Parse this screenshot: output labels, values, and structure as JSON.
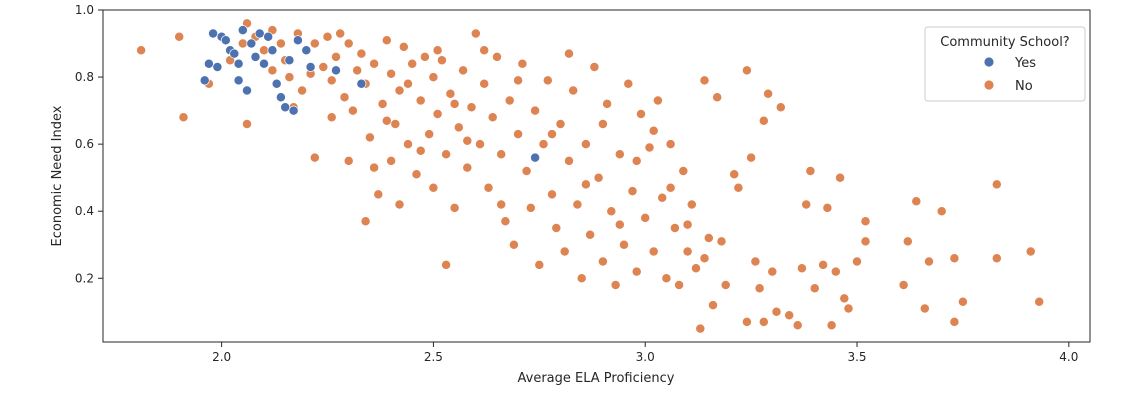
{
  "chart_data": {
    "type": "scatter",
    "xlabel": "Average ELA Proficiency",
    "ylabel": "Economic Need Index",
    "xlim": [
      1.72,
      4.05
    ],
    "ylim": [
      0.01,
      1.0
    ],
    "xticks": [
      "2.0",
      "2.5",
      "3.0",
      "3.5",
      "4.0"
    ],
    "yticks": [
      "0.2",
      "0.4",
      "0.6",
      "0.8",
      "1.0"
    ],
    "grid": false,
    "legend": {
      "title": "Community School?",
      "placement": "top-right",
      "entries": [
        "Yes",
        "No"
      ]
    },
    "colors": {
      "Yes": "#4c72b0",
      "No": "#dd8452"
    },
    "series": [
      {
        "name": "No",
        "points": [
          [
            1.81,
            0.88
          ],
          [
            1.9,
            0.92
          ],
          [
            1.91,
            0.68
          ],
          [
            1.97,
            0.78
          ],
          [
            1.98,
            0.93
          ],
          [
            2.02,
            0.85
          ],
          [
            2.06,
            0.96
          ],
          [
            2.06,
            0.66
          ],
          [
            2.08,
            0.92
          ],
          [
            2.1,
            0.88
          ],
          [
            2.12,
            0.94
          ],
          [
            2.14,
            0.9
          ],
          [
            2.15,
            0.85
          ],
          [
            2.16,
            0.8
          ],
          [
            2.18,
            0.93
          ],
          [
            2.19,
            0.76
          ],
          [
            2.2,
            0.88
          ],
          [
            2.22,
            0.56
          ],
          [
            2.22,
            0.9
          ],
          [
            2.24,
            0.83
          ],
          [
            2.25,
            0.92
          ],
          [
            2.26,
            0.79
          ],
          [
            2.27,
            0.86
          ],
          [
            2.28,
            0.93
          ],
          [
            2.29,
            0.74
          ],
          [
            2.3,
            0.55
          ],
          [
            2.3,
            0.9
          ],
          [
            2.31,
            0.7
          ],
          [
            2.33,
            0.87
          ],
          [
            2.34,
            0.37
          ],
          [
            2.34,
            0.78
          ],
          [
            2.35,
            0.62
          ],
          [
            2.36,
            0.84
          ],
          [
            2.37,
            0.45
          ],
          [
            2.38,
            0.72
          ],
          [
            2.39,
            0.91
          ],
          [
            2.4,
            0.55
          ],
          [
            2.4,
            0.81
          ],
          [
            2.41,
            0.66
          ],
          [
            2.42,
            0.42
          ],
          [
            2.42,
            0.76
          ],
          [
            2.43,
            0.89
          ],
          [
            2.44,
            0.6
          ],
          [
            2.45,
            0.84
          ],
          [
            2.46,
            0.51
          ],
          [
            2.47,
            0.73
          ],
          [
            2.48,
            0.86
          ],
          [
            2.49,
            0.63
          ],
          [
            2.5,
            0.8
          ],
          [
            2.5,
            0.47
          ],
          [
            2.51,
            0.69
          ],
          [
            2.52,
            0.85
          ],
          [
            2.53,
            0.57
          ],
          [
            2.53,
            0.24
          ],
          [
            2.54,
            0.75
          ],
          [
            2.55,
            0.41
          ],
          [
            2.56,
            0.65
          ],
          [
            2.57,
            0.82
          ],
          [
            2.58,
            0.53
          ],
          [
            2.59,
            0.71
          ],
          [
            2.6,
            0.93
          ],
          [
            2.61,
            0.6
          ],
          [
            2.62,
            0.78
          ],
          [
            2.63,
            0.47
          ],
          [
            2.64,
            0.68
          ],
          [
            2.65,
            0.86
          ],
          [
            2.66,
            0.57
          ],
          [
            2.67,
            0.37
          ],
          [
            2.68,
            0.73
          ],
          [
            2.69,
            0.3
          ],
          [
            2.7,
            0.63
          ],
          [
            2.71,
            0.84
          ],
          [
            2.72,
            0.52
          ],
          [
            2.73,
            0.41
          ],
          [
            2.74,
            0.7
          ],
          [
            2.75,
            0.24
          ],
          [
            2.76,
            0.6
          ],
          [
            2.77,
            0.79
          ],
          [
            2.78,
            0.45
          ],
          [
            2.79,
            0.35
          ],
          [
            2.8,
            0.66
          ],
          [
            2.81,
            0.28
          ],
          [
            2.82,
            0.55
          ],
          [
            2.83,
            0.76
          ],
          [
            2.84,
            0.42
          ],
          [
            2.85,
            0.2
          ],
          [
            2.86,
            0.6
          ],
          [
            2.87,
            0.33
          ],
          [
            2.88,
            0.83
          ],
          [
            2.89,
            0.5
          ],
          [
            2.9,
            0.25
          ],
          [
            2.91,
            0.72
          ],
          [
            2.92,
            0.4
          ],
          [
            2.93,
            0.18
          ],
          [
            2.94,
            0.57
          ],
          [
            2.95,
            0.3
          ],
          [
            2.96,
            0.78
          ],
          [
            2.97,
            0.46
          ],
          [
            2.98,
            0.22
          ],
          [
            2.99,
            0.69
          ],
          [
            3.0,
            0.38
          ],
          [
            3.01,
            0.59
          ],
          [
            3.02,
            0.28
          ],
          [
            3.03,
            0.73
          ],
          [
            3.04,
            0.44
          ],
          [
            3.05,
            0.2
          ],
          [
            3.06,
            0.6
          ],
          [
            3.07,
            0.35
          ],
          [
            3.08,
            0.18
          ],
          [
            3.09,
            0.52
          ],
          [
            3.1,
            0.28
          ],
          [
            3.11,
            0.42
          ],
          [
            3.12,
            0.23
          ],
          [
            3.13,
            0.05
          ],
          [
            3.14,
            0.79
          ],
          [
            3.15,
            0.32
          ],
          [
            3.16,
            0.12
          ],
          [
            3.17,
            0.74
          ],
          [
            3.19,
            0.18
          ],
          [
            3.21,
            0.51
          ],
          [
            3.22,
            0.47
          ],
          [
            3.24,
            0.82
          ],
          [
            3.24,
            0.07
          ],
          [
            3.25,
            0.56
          ],
          [
            3.26,
            0.25
          ],
          [
            3.27,
            0.17
          ],
          [
            3.28,
            0.67
          ],
          [
            3.28,
            0.07
          ],
          [
            3.29,
            0.75
          ],
          [
            3.3,
            0.22
          ],
          [
            3.31,
            0.1
          ],
          [
            3.32,
            0.71
          ],
          [
            3.34,
            0.09
          ],
          [
            3.36,
            0.06
          ],
          [
            3.37,
            0.23
          ],
          [
            3.38,
            0.42
          ],
          [
            3.39,
            0.52
          ],
          [
            3.4,
            0.17
          ],
          [
            3.42,
            0.24
          ],
          [
            3.43,
            0.41
          ],
          [
            3.44,
            0.06
          ],
          [
            3.45,
            0.22
          ],
          [
            3.46,
            0.5
          ],
          [
            3.47,
            0.14
          ],
          [
            3.48,
            0.11
          ],
          [
            3.5,
            0.25
          ],
          [
            3.52,
            0.37
          ],
          [
            3.52,
            0.31
          ],
          [
            3.61,
            0.18
          ],
          [
            3.62,
            0.31
          ],
          [
            3.64,
            0.43
          ],
          [
            3.66,
            0.11
          ],
          [
            3.67,
            0.25
          ],
          [
            3.7,
            0.4
          ],
          [
            3.73,
            0.07
          ],
          [
            3.73,
            0.26
          ],
          [
            3.75,
            0.13
          ],
          [
            3.83,
            0.48
          ],
          [
            3.83,
            0.26
          ],
          [
            3.91,
            0.28
          ],
          [
            3.93,
            0.13
          ],
          [
            2.05,
            0.9
          ],
          [
            2.12,
            0.82
          ],
          [
            2.17,
            0.71
          ],
          [
            2.21,
            0.81
          ],
          [
            2.26,
            0.68
          ],
          [
            2.32,
            0.82
          ],
          [
            2.36,
            0.53
          ],
          [
            2.39,
            0.67
          ],
          [
            2.44,
            0.78
          ],
          [
            2.47,
            0.58
          ],
          [
            2.51,
            0.88
          ],
          [
            2.55,
            0.72
          ],
          [
            2.58,
            0.61
          ],
          [
            2.62,
            0.88
          ],
          [
            2.66,
            0.42
          ],
          [
            2.7,
            0.79
          ],
          [
            2.74,
            0.56
          ],
          [
            2.78,
            0.63
          ],
          [
            2.82,
            0.87
          ],
          [
            2.86,
            0.48
          ],
          [
            2.9,
            0.66
          ],
          [
            2.94,
            0.36
          ],
          [
            2.98,
            0.55
          ],
          [
            3.02,
            0.64
          ],
          [
            3.06,
            0.47
          ],
          [
            3.1,
            0.36
          ],
          [
            3.14,
            0.26
          ],
          [
            3.18,
            0.31
          ]
        ]
      },
      {
        "name": "Yes",
        "points": [
          [
            1.96,
            0.79
          ],
          [
            1.97,
            0.84
          ],
          [
            1.98,
            0.93
          ],
          [
            1.99,
            0.83
          ],
          [
            2.0,
            0.92
          ],
          [
            2.01,
            0.91
          ],
          [
            2.02,
            0.88
          ],
          [
            2.03,
            0.87
          ],
          [
            2.04,
            0.84
          ],
          [
            2.04,
            0.79
          ],
          [
            2.05,
            0.94
          ],
          [
            2.06,
            0.76
          ],
          [
            2.07,
            0.9
          ],
          [
            2.08,
            0.86
          ],
          [
            2.09,
            0.93
          ],
          [
            2.1,
            0.84
          ],
          [
            2.11,
            0.92
          ],
          [
            2.12,
            0.88
          ],
          [
            2.13,
            0.78
          ],
          [
            2.14,
            0.74
          ],
          [
            2.15,
            0.71
          ],
          [
            2.16,
            0.85
          ],
          [
            2.17,
            0.7
          ],
          [
            2.18,
            0.91
          ],
          [
            2.2,
            0.88
          ],
          [
            2.21,
            0.83
          ],
          [
            2.27,
            0.82
          ],
          [
            2.33,
            0.78
          ],
          [
            2.74,
            0.56
          ]
        ]
      }
    ]
  }
}
